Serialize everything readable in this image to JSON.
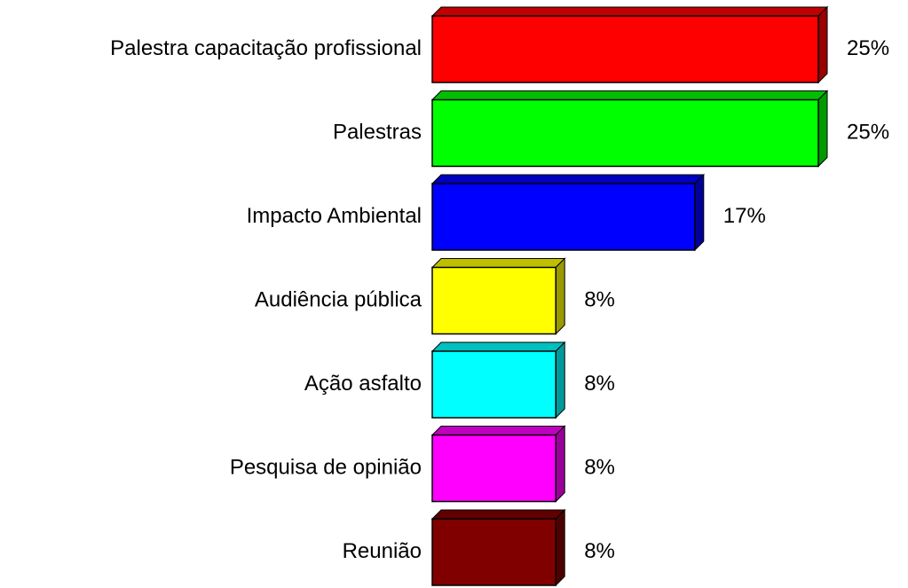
{
  "chart_data": {
    "type": "bar",
    "orientation": "horizontal",
    "categories": [
      "Palestra capacitação profissional",
      "Palestras",
      "Impacto Ambiental",
      "Audiência pública",
      "Ação asfalto",
      "Pesquisa de opinião",
      "Reunião"
    ],
    "values": [
      25,
      25,
      17,
      8,
      8,
      8,
      8
    ],
    "value_labels": [
      "25%",
      "25%",
      "17%",
      "8%",
      "8%",
      "8%",
      "8%"
    ],
    "colors": [
      "#ff0000",
      "#00ff00",
      "#0000ff",
      "#ffff00",
      "#00ffff",
      "#ff00ff",
      "#800000"
    ]
  }
}
